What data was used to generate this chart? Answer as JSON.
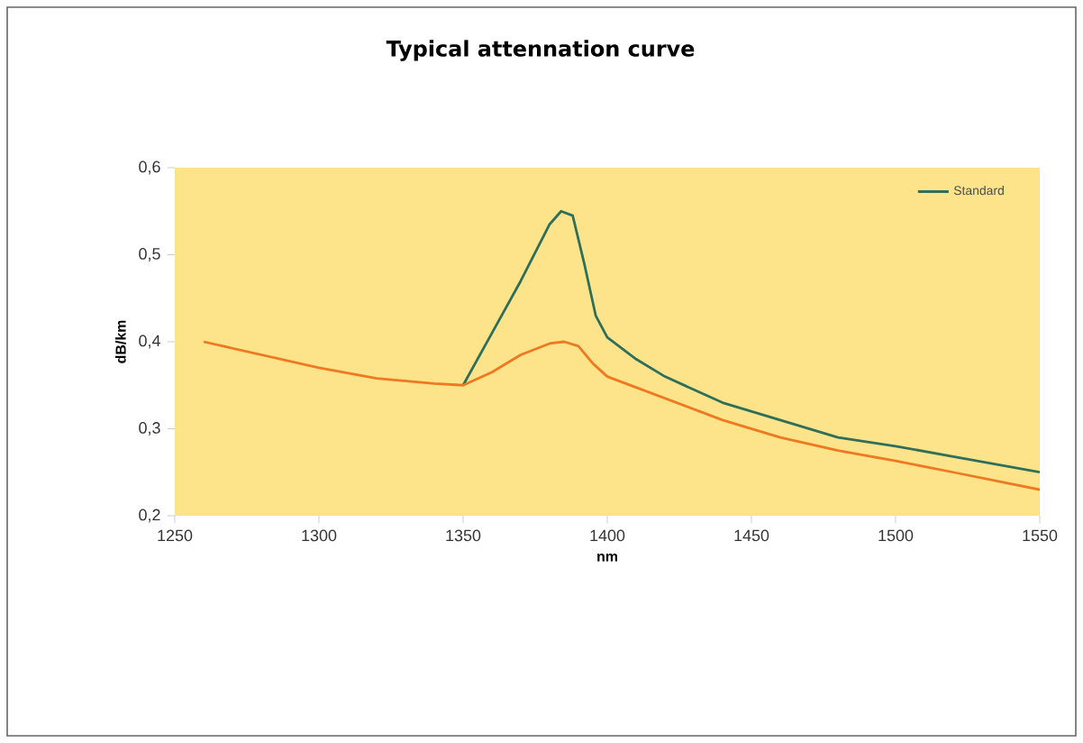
{
  "chart_data": {
    "type": "line",
    "title": "Typical attennation curve",
    "xlabel": "nm",
    "ylabel": "dB/km",
    "xlim": [
      1250,
      1550
    ],
    "xticks": [
      1250,
      1300,
      1350,
      1400,
      1450,
      1500,
      1550
    ],
    "ylim": [
      0.2,
      0.6
    ],
    "yticks": [
      {
        "value": 0.2,
        "label": "0,2"
      },
      {
        "value": 0.3,
        "label": "0,3"
      },
      {
        "value": 0.4,
        "label": "0,4"
      },
      {
        "value": 0.5,
        "label": "0,5"
      },
      {
        "value": 0.6,
        "label": "0,6"
      }
    ],
    "legend": "top right",
    "grid": false,
    "marker": "none",
    "line_style": "solid",
    "series": [
      {
        "name": "Standard",
        "color": "#2e6e5a",
        "x": [
          1350,
          1360,
          1370,
          1380,
          1384,
          1388,
          1392,
          1396,
          1400,
          1410,
          1420,
          1440,
          1460,
          1480,
          1500,
          1520,
          1550
        ],
        "values": [
          0.35,
          0.41,
          0.47,
          0.535,
          0.55,
          0.545,
          0.49,
          0.43,
          0.405,
          0.38,
          0.36,
          0.33,
          0.31,
          0.29,
          0.28,
          0.268,
          0.25
        ]
      },
      {
        "color": "#f07820",
        "x": [
          1260,
          1280,
          1300,
          1320,
          1340,
          1350,
          1360,
          1370,
          1380,
          1385,
          1390,
          1395,
          1400,
          1420,
          1440,
          1460,
          1480,
          1500,
          1520,
          1550
        ],
        "values": [
          0.4,
          0.385,
          0.37,
          0.358,
          0.352,
          0.35,
          0.365,
          0.385,
          0.398,
          0.4,
          0.395,
          0.375,
          0.36,
          0.335,
          0.31,
          0.29,
          0.275,
          0.263,
          0.25,
          0.23
        ]
      }
    ]
  }
}
